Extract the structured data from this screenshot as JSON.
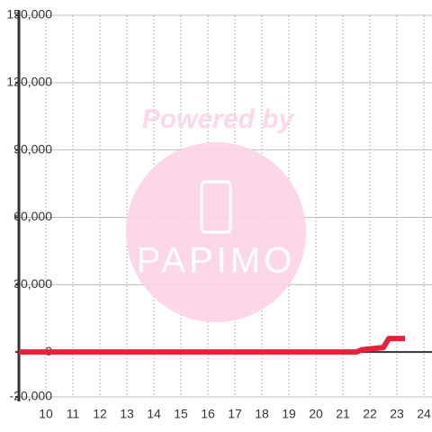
{
  "chart_data": {
    "type": "line",
    "watermark": {
      "title": "Powered by",
      "brand": "PAPIMO"
    },
    "x": [
      9,
      21.5,
      21.7,
      22.5,
      22.7,
      23.3
    ],
    "series": [
      {
        "color": "#e8213a",
        "values": [
          0,
          0,
          1000,
          2000,
          6000,
          6000
        ]
      }
    ],
    "xlim": [
      9,
      24.3
    ],
    "xticks": [
      10,
      11,
      12,
      13,
      14,
      15,
      16,
      17,
      18,
      19,
      20,
      21,
      22,
      23,
      24
    ],
    "ylim": [
      -20000,
      150000
    ],
    "yticks": [
      {
        "value": -20000,
        "label": "-20,000"
      },
      0,
      {
        "value": 30000,
        "label": "30,000"
      },
      {
        "value": 60000,
        "label": "60,000"
      },
      {
        "value": 90000,
        "label": "90,000"
      },
      {
        "value": 120000,
        "label": "120,000"
      },
      {
        "value": 150000,
        "label": "150,000"
      }
    ],
    "grid": true
  }
}
